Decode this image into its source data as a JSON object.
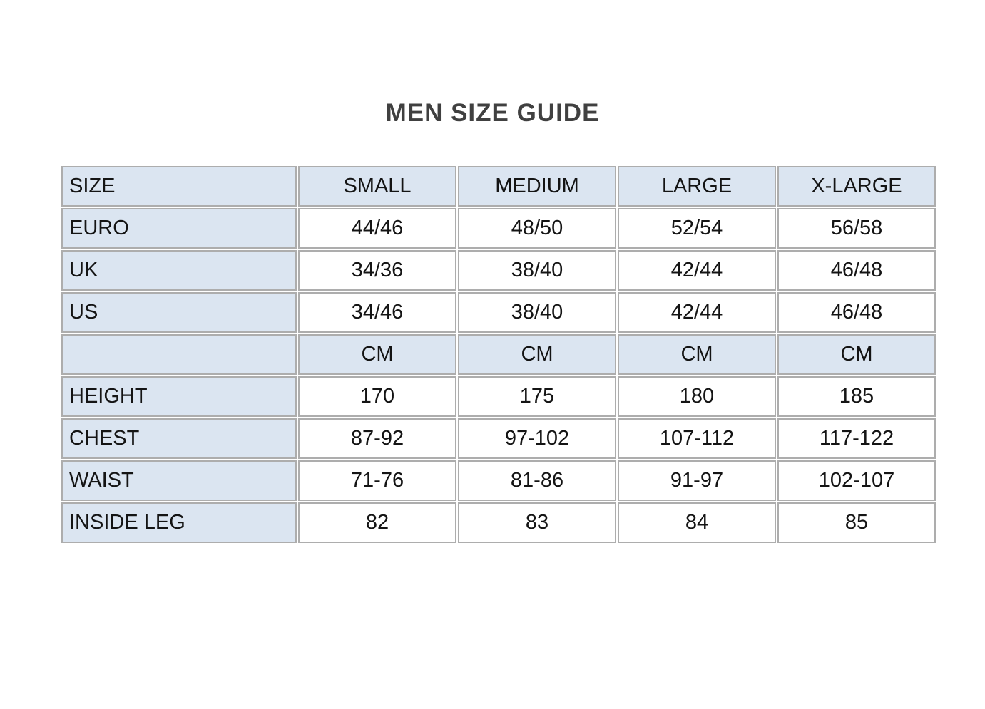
{
  "page": {
    "title": "MEN SIZE GUIDE"
  },
  "colors": {
    "shaded_bg": "#dbe5f1",
    "border": "#adadad",
    "cell_text": "#141414",
    "title_text": "#404040"
  },
  "size_table": {
    "header": [
      "SIZE",
      "SMALL",
      "MEDIUM",
      "LARGE",
      "X-LARGE"
    ],
    "rows": [
      {
        "label": "EURO",
        "values": [
          "44/46",
          "48/50",
          "52/54",
          "56/58"
        ],
        "shaded_values": false
      },
      {
        "label": "UK",
        "values": [
          "34/36",
          "38/40",
          "42/44",
          "46/48"
        ],
        "shaded_values": false
      },
      {
        "label": "US",
        "values": [
          "34/46",
          "38/40",
          "42/44",
          "46/48"
        ],
        "shaded_values": false
      },
      {
        "label": "",
        "values": [
          "CM",
          "CM",
          "CM",
          "CM"
        ],
        "shaded_values": true
      },
      {
        "label": "HEIGHT",
        "values": [
          "170",
          "175",
          "180",
          "185"
        ],
        "shaded_values": false
      },
      {
        "label": "CHEST",
        "values": [
          "87-92",
          "97-102",
          "107-112",
          "117-122"
        ],
        "shaded_values": false
      },
      {
        "label": "WAIST",
        "values": [
          "71-76",
          "81-86",
          "91-97",
          "102-107"
        ],
        "shaded_values": false
      },
      {
        "label": "INSIDE LEG",
        "values": [
          "82",
          "83",
          "84",
          "85"
        ],
        "shaded_values": false
      }
    ]
  }
}
